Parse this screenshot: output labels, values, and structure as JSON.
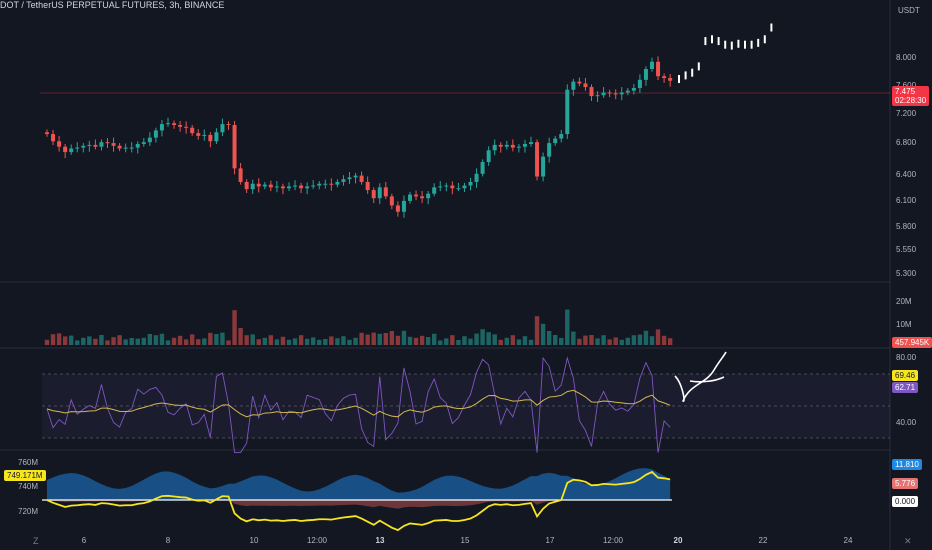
{
  "header": {
    "title": "DOT / TetherUS PERPETUAL FUTURES, 3h, BINANCE"
  },
  "price_axis": {
    "currency": "USDT",
    "labels": [
      "8.000",
      "7.600",
      "7.200",
      "6.800",
      "6.400",
      "6.100",
      "5.800",
      "5.550",
      "5.300"
    ]
  },
  "price_tag": {
    "value": "7.475",
    "countdown": "02:28:30"
  },
  "volume_axis": {
    "labels": [
      "20M",
      "10M"
    ],
    "last": "457.945K"
  },
  "rsi_axis": {
    "labels": [
      "80.00",
      "40.00"
    ],
    "value1": "69.46",
    "value2": "62.71"
  },
  "lower_axis": {
    "labels": [
      "760M",
      "740M",
      "720M"
    ],
    "value": "749.171M",
    "v1": "11.810",
    "v2": "5.776",
    "v3": "0.000"
  },
  "time_axis": [
    "6",
    "8",
    "10",
    "12:00",
    "13",
    "15",
    "17",
    "12:00",
    "20",
    "22",
    "24"
  ],
  "colors": {
    "up": "#26a69a",
    "down": "#ef5350",
    "bg": "#131722",
    "rsi": "#7e57c2",
    "ma": "#d4b94f",
    "bull": "#1e88e5",
    "bear": "#a64d4d"
  },
  "icons": {
    "zoom": "z-icon",
    "ticker": "tv-logo-icon"
  },
  "chart_data": {
    "type": "candlestick",
    "symbol": "DOT / TetherUS PERPETUAL FUTURES",
    "timeframe": "3h",
    "exchange": "BINANCE",
    "closes": [
      6.86,
      6.78,
      6.72,
      6.66,
      6.7,
      6.71,
      6.73,
      6.74,
      6.72,
      6.77,
      6.76,
      6.73,
      6.7,
      6.71,
      6.71,
      6.75,
      6.77,
      6.82,
      6.9,
      6.97,
      6.98,
      6.96,
      6.94,
      6.93,
      6.87,
      6.84,
      6.85,
      6.78,
      6.88,
      6.97,
      6.96,
      6.48,
      6.33,
      6.25,
      6.31,
      6.28,
      6.3,
      6.27,
      6.28,
      6.26,
      6.28,
      6.29,
      6.26,
      6.28,
      6.29,
      6.31,
      6.31,
      6.3,
      6.33,
      6.36,
      6.38,
      6.4,
      6.33,
      6.24,
      6.15,
      6.27,
      6.17,
      6.07,
      6.0,
      6.12,
      6.19,
      6.17,
      6.15,
      6.2,
      6.27,
      6.28,
      6.29,
      6.26,
      6.26,
      6.29,
      6.33,
      6.42,
      6.55,
      6.68,
      6.74,
      6.72,
      6.74,
      6.71,
      6.72,
      6.75,
      6.77,
      6.39,
      6.61,
      6.76,
      6.81,
      6.86,
      7.35,
      7.44,
      7.42,
      7.38,
      7.28,
      7.29,
      7.32,
      7.31,
      7.3,
      7.32,
      7.34,
      7.37,
      7.46,
      7.58,
      7.66,
      7.5,
      7.48,
      7.45
    ],
    "last_price": 7.475,
    "y_range": [
      5.3,
      8.1
    ]
  }
}
